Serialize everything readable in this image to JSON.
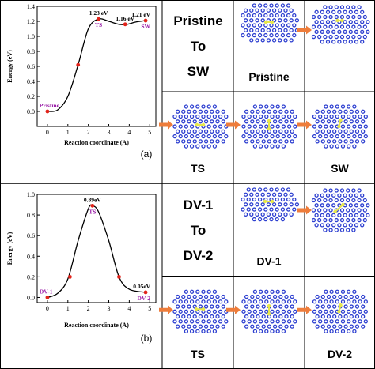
{
  "panels": [
    {
      "label": "(a)",
      "chart_data": {
        "type": "line",
        "xlabel": "Reaction coordinate (A)",
        "ylabel": "Energy (eV)",
        "xlim": [
          -0.5,
          5.3
        ],
        "ylim": [
          -0.2,
          1.4
        ],
        "xticks": [
          0,
          1,
          2,
          3,
          4,
          5
        ],
        "yticks": [
          0.0,
          0.2,
          0.4,
          0.6,
          0.8,
          1.0,
          1.2,
          1.4
        ],
        "ytick_labels": [
          "0.0",
          "0.2",
          "0.4",
          "0.6",
          "0.8",
          "1.0",
          "1.2",
          "1.4"
        ],
        "curve": {
          "x": [
            0,
            0.5,
            1.0,
            1.5,
            2.0,
            2.5,
            3.0,
            3.5,
            3.9,
            4.3,
            4.8
          ],
          "y": [
            0.0,
            0.02,
            0.2,
            0.62,
            1.1,
            1.23,
            1.2,
            1.16,
            1.16,
            1.19,
            1.21
          ]
        },
        "points": [
          {
            "x": 0,
            "y": 0.0
          },
          {
            "x": 1.5,
            "y": 0.62
          },
          {
            "x": 2.5,
            "y": 1.23
          },
          {
            "x": 3.8,
            "y": 1.16
          },
          {
            "x": 4.8,
            "y": 1.21
          }
        ],
        "annotations": [
          {
            "text": "1.23 eV",
            "x": 2.5,
            "y": 1.23,
            "pos": "above",
            "color": "#000000"
          },
          {
            "text": "1.16 eV",
            "x": 3.8,
            "y": 1.16,
            "pos": "above",
            "color": "#000000"
          },
          {
            "text": "1.21 eV",
            "x": 4.8,
            "y": 1.21,
            "pos": "above",
            "color": "#000000"
          },
          {
            "text": "TS",
            "x": 2.5,
            "y": 1.23,
            "pos": "below",
            "color": "#9b1fa8"
          },
          {
            "text": "SW",
            "x": 4.8,
            "y": 1.21,
            "pos": "below",
            "color": "#9b1fa8"
          },
          {
            "text": "Pristine",
            "x": 0,
            "y": 0.0,
            "pos": "above",
            "color": "#9b1fa8"
          }
        ]
      },
      "cells": [
        "Pristine\nTo\nSW",
        "Pristine",
        "TS",
        "SW"
      ]
    },
    {
      "label": "(b)",
      "chart_data": {
        "type": "line",
        "xlabel": "Reaction coordinate (A)",
        "ylabel": "Energy (eV)",
        "xlim": [
          -0.5,
          5.3
        ],
        "ylim": [
          -0.05,
          1.0
        ],
        "xticks": [
          0,
          1,
          2,
          3,
          4,
          5
        ],
        "yticks": [
          0.0,
          0.2,
          0.4,
          0.6,
          0.8,
          1.0
        ],
        "ytick_labels": [
          "0.0",
          "0.2",
          "0.4",
          "0.6",
          "0.8",
          "1.0"
        ],
        "curve": {
          "x": [
            0,
            0.5,
            1.0,
            1.5,
            2.0,
            2.2,
            2.5,
            3.0,
            3.5,
            4.0,
            4.8
          ],
          "y": [
            0.0,
            0.04,
            0.18,
            0.55,
            0.86,
            0.89,
            0.83,
            0.55,
            0.2,
            0.08,
            0.05
          ]
        },
        "points": [
          {
            "x": 0,
            "y": 0.0
          },
          {
            "x": 1.1,
            "y": 0.2
          },
          {
            "x": 2.2,
            "y": 0.89
          },
          {
            "x": 3.5,
            "y": 0.2
          },
          {
            "x": 4.8,
            "y": 0.05
          }
        ],
        "annotations": [
          {
            "text": "0.89eV",
            "x": 2.2,
            "y": 0.89,
            "pos": "above",
            "color": "#000000"
          },
          {
            "text": "TS",
            "x": 2.2,
            "y": 0.89,
            "pos": "below",
            "color": "#9b1fa8"
          },
          {
            "text": "0.05eV",
            "x": 4.8,
            "y": 0.05,
            "pos": "above",
            "color": "#000000"
          },
          {
            "text": "DV-1",
            "x": 0,
            "y": 0.0,
            "pos": "above",
            "color": "#9b1fa8"
          },
          {
            "text": "DV-2",
            "x": 4.8,
            "y": 0.05,
            "pos": "below",
            "color": "#9b1fa8"
          }
        ]
      },
      "cells": [
        "DV-1\nTo\nDV-2",
        "DV-1",
        "TS",
        "DV-2"
      ]
    }
  ],
  "colors": {
    "curve": "#000000",
    "marker": "#e2231a",
    "label": "#9b1fa8",
    "atom": "#2d3fd0",
    "defect": "#e8e84a",
    "arrow": "#ee7d3b",
    "border": "#000000"
  }
}
